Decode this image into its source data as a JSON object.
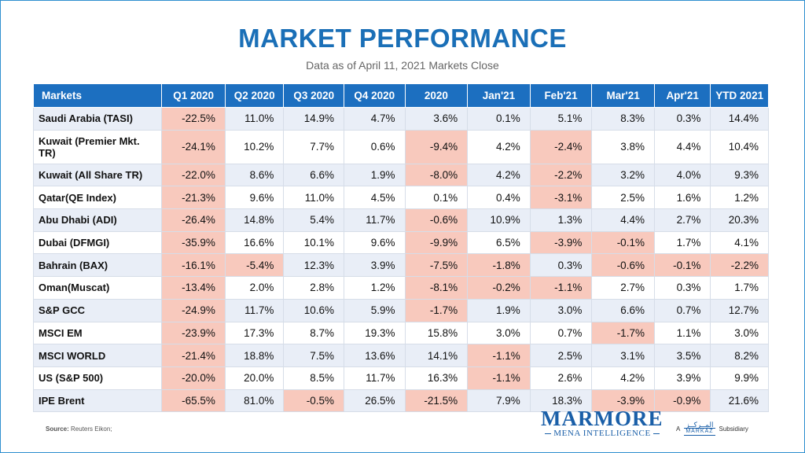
{
  "title": "MARKET PERFORMANCE",
  "subtitle": "Data as of April 11, 2021 Markets Close",
  "source_label": "Source:",
  "source_text": "Reuters Eikon;",
  "logo": {
    "name": "MARMORE",
    "tagline": "MENA INTELLIGENCE"
  },
  "subsidiary": {
    "prefix": "A",
    "arabic": "المــركــز",
    "markaz": "MARKAZ",
    "suffix": "Subsidiary"
  },
  "colors": {
    "header": "#1c6fc0",
    "title": "#1a6fb7",
    "negative_highlight": "#f8c9bd",
    "row_alt": "#e9eef7"
  },
  "chart_data": {
    "type": "table",
    "columns": [
      "Markets",
      "Q1 2020",
      "Q2 2020",
      "Q3 2020",
      "Q4 2020",
      "2020",
      "Jan'21",
      "Feb'21",
      "Mar'21",
      "Apr'21",
      "YTD 2021"
    ],
    "rows": [
      {
        "market": "Saudi Arabia (TASI)",
        "values": [
          "-22.5%",
          "11.0%",
          "14.9%",
          "4.7%",
          "3.6%",
          "0.1%",
          "5.1%",
          "8.3%",
          "0.3%",
          "14.4%"
        ]
      },
      {
        "market": "Kuwait (Premier Mkt. TR)",
        "values": [
          "-24.1%",
          "10.2%",
          "7.7%",
          "0.6%",
          "-9.4%",
          "4.2%",
          "-2.4%",
          "3.8%",
          "4.4%",
          "10.4%"
        ]
      },
      {
        "market": "Kuwait (All Share TR)",
        "values": [
          "-22.0%",
          "8.6%",
          "6.6%",
          "1.9%",
          "-8.0%",
          "4.2%",
          "-2.2%",
          "3.2%",
          "4.0%",
          "9.3%"
        ]
      },
      {
        "market": "Qatar(QE Index)",
        "values": [
          "-21.3%",
          "9.6%",
          "11.0%",
          "4.5%",
          "0.1%",
          "0.4%",
          "-3.1%",
          "2.5%",
          "1.6%",
          "1.2%"
        ]
      },
      {
        "market": "Abu Dhabi (ADI)",
        "values": [
          "-26.4%",
          "14.8%",
          "5.4%",
          "11.7%",
          "-0.6%",
          "10.9%",
          "1.3%",
          "4.4%",
          "2.7%",
          "20.3%"
        ]
      },
      {
        "market": "Dubai (DFMGI)",
        "values": [
          "-35.9%",
          "16.6%",
          "10.1%",
          "9.6%",
          "-9.9%",
          "6.5%",
          "-3.9%",
          "-0.1%",
          "1.7%",
          "4.1%"
        ]
      },
      {
        "market": "Bahrain (BAX)",
        "values": [
          "-16.1%",
          "-5.4%",
          "12.3%",
          "3.9%",
          "-7.5%",
          "-1.8%",
          "0.3%",
          "-0.6%",
          "-0.1%",
          "-2.2%"
        ]
      },
      {
        "market": "Oman(Muscat)",
        "values": [
          "-13.4%",
          "2.0%",
          "2.8%",
          "1.2%",
          "-8.1%",
          "-0.2%",
          "-1.1%",
          "2.7%",
          "0.3%",
          "1.7%"
        ]
      },
      {
        "market": "S&P GCC",
        "values": [
          "-24.9%",
          "11.7%",
          "10.6%",
          "5.9%",
          "-1.7%",
          "1.9%",
          "3.0%",
          "6.6%",
          "0.7%",
          "12.7%"
        ]
      },
      {
        "market": "MSCI EM",
        "values": [
          "-23.9%",
          "17.3%",
          "8.7%",
          "19.3%",
          "15.8%",
          "3.0%",
          "0.7%",
          "-1.7%",
          "1.1%",
          "3.0%"
        ]
      },
      {
        "market": "MSCI WORLD",
        "values": [
          "-21.4%",
          "18.8%",
          "7.5%",
          "13.6%",
          "14.1%",
          "-1.1%",
          "2.5%",
          "3.1%",
          "3.5%",
          "8.2%"
        ]
      },
      {
        "market": "US (S&P 500)",
        "values": [
          "-20.0%",
          "20.0%",
          "8.5%",
          "11.7%",
          "16.3%",
          "-1.1%",
          "2.6%",
          "4.2%",
          "3.9%",
          "9.9%"
        ]
      },
      {
        "market": "IPE Brent",
        "values": [
          "-65.5%",
          "81.0%",
          "-0.5%",
          "26.5%",
          "-21.5%",
          "7.9%",
          "18.3%",
          "-3.9%",
          "-0.9%",
          "21.6%"
        ]
      }
    ]
  }
}
